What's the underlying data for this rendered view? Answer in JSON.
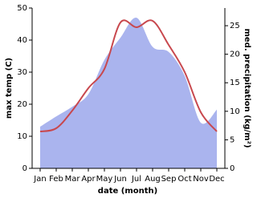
{
  "chart_data": {
    "type": "line-area",
    "categories": [
      "Jan",
      "Feb",
      "Mar",
      "Apr",
      "May",
      "Jun",
      "Jul",
      "Aug",
      "Sep",
      "Oct",
      "Nov",
      "Dec"
    ],
    "xlabel": "date (month)",
    "ylabel": "max temp (C)",
    "y2label": "med. precipitation (kg/m²)",
    "ylim": [
      0,
      50
    ],
    "yticks": [
      0,
      10,
      20,
      30,
      40,
      50
    ],
    "y2lim": [
      0,
      28.1
    ],
    "y2ticks": [
      0,
      5,
      10,
      15,
      20,
      25
    ],
    "series": [
      {
        "name": "precipitation",
        "axis": "y2",
        "color": "#aab4ee",
        "values": [
          7.3,
          9.1,
          10.8,
          13,
          19,
          22.9,
          26.4,
          21.3,
          20.4,
          16.2,
          8,
          10.3
        ]
      },
      {
        "name": "max temp",
        "color": "#c8484e",
        "values": [
          11.5,
          12.5,
          18,
          25,
          31,
          45.5,
          44,
          46,
          38.5,
          30,
          17.5,
          11.5
        ]
      }
    ]
  }
}
